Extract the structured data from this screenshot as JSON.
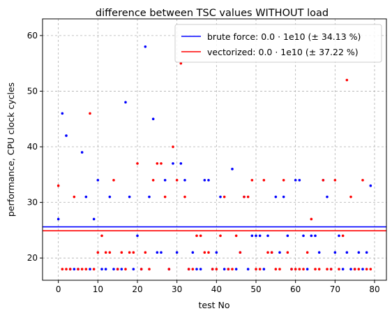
{
  "chart_data": {
    "type": "scatter",
    "title": "difference between TSC values WITHOUT load",
    "xlabel": "test No",
    "ylabel": "performance, CPU clock cycles",
    "xlim": [
      -4,
      83
    ],
    "ylim": [
      16,
      63
    ],
    "xticks": [
      0,
      10,
      20,
      30,
      40,
      50,
      60,
      70,
      80
    ],
    "yticks": [
      20,
      30,
      40,
      50,
      60
    ],
    "grid": true,
    "legend_position": "top-right",
    "series": [
      {
        "name": "brute force: 0.0 · 1e10 (± 34.13 %)",
        "color": "#0000ff",
        "x": [
          0,
          1,
          2,
          3,
          4,
          5,
          6,
          7,
          8,
          9,
          10,
          11,
          12,
          13,
          14,
          15,
          16,
          17,
          18,
          19,
          20,
          21,
          22,
          23,
          24,
          25,
          26,
          27,
          28,
          29,
          30,
          31,
          32,
          33,
          34,
          35,
          36,
          37,
          38,
          39,
          40,
          41,
          42,
          43,
          44,
          45,
          46,
          47,
          48,
          49,
          50,
          51,
          52,
          53,
          54,
          55,
          56,
          57,
          58,
          59,
          60,
          61,
          62,
          63,
          64,
          65,
          66,
          67,
          68,
          69,
          70,
          71,
          72,
          73,
          74,
          75,
          76,
          77,
          78,
          79
        ],
        "values": [
          27,
          46,
          42,
          18,
          18,
          18,
          39,
          31,
          18,
          27,
          34,
          18,
          18,
          31,
          18,
          18,
          18,
          48,
          31,
          18,
          24,
          18,
          58,
          31,
          45,
          21,
          21,
          34,
          18,
          37,
          21,
          37,
          34,
          18,
          21,
          18,
          18,
          34,
          34,
          18,
          21,
          31,
          18,
          18,
          36,
          18,
          21,
          31,
          18,
          24,
          24,
          24,
          18,
          24,
          21,
          31,
          21,
          31,
          24,
          18,
          34,
          34,
          24,
          18,
          24,
          24,
          21,
          34,
          31,
          18,
          21,
          24,
          18,
          21,
          18,
          18,
          21,
          18,
          21,
          33
        ],
        "mean_line": 25.6
      },
      {
        "name": "vectorized: 0.0 · 1e10 (± 37.22 %)",
        "color": "#ff0000",
        "x": [
          0,
          1,
          2,
          3,
          4,
          5,
          6,
          7,
          8,
          9,
          10,
          11,
          12,
          13,
          14,
          15,
          16,
          17,
          18,
          19,
          20,
          21,
          22,
          23,
          24,
          25,
          26,
          27,
          28,
          29,
          30,
          31,
          32,
          33,
          34,
          35,
          36,
          37,
          38,
          39,
          40,
          41,
          42,
          43,
          44,
          45,
          46,
          47,
          48,
          49,
          50,
          51,
          52,
          53,
          54,
          55,
          56,
          57,
          58,
          59,
          60,
          61,
          62,
          63,
          64,
          65,
          66,
          67,
          68,
          69,
          70,
          71,
          72,
          73,
          74,
          75,
          76,
          77,
          78,
          79
        ],
        "values": [
          33,
          18,
          18,
          18,
          31,
          18,
          18,
          18,
          46,
          18,
          21,
          24,
          21,
          21,
          34,
          18,
          21,
          18,
          21,
          21,
          37,
          18,
          21,
          18,
          34,
          37,
          37,
          31,
          18,
          40,
          34,
          55,
          31,
          18,
          18,
          24,
          24,
          21,
          21,
          18,
          18,
          24,
          31,
          18,
          18,
          24,
          21,
          31,
          31,
          34,
          18,
          18,
          34,
          21,
          21,
          18,
          18,
          34,
          21,
          18,
          18,
          18,
          18,
          21,
          27,
          18,
          18,
          34,
          18,
          18,
          34,
          18,
          24,
          52,
          31,
          18,
          18,
          34,
          18,
          18
        ],
        "mean_line": 24.9
      }
    ]
  }
}
